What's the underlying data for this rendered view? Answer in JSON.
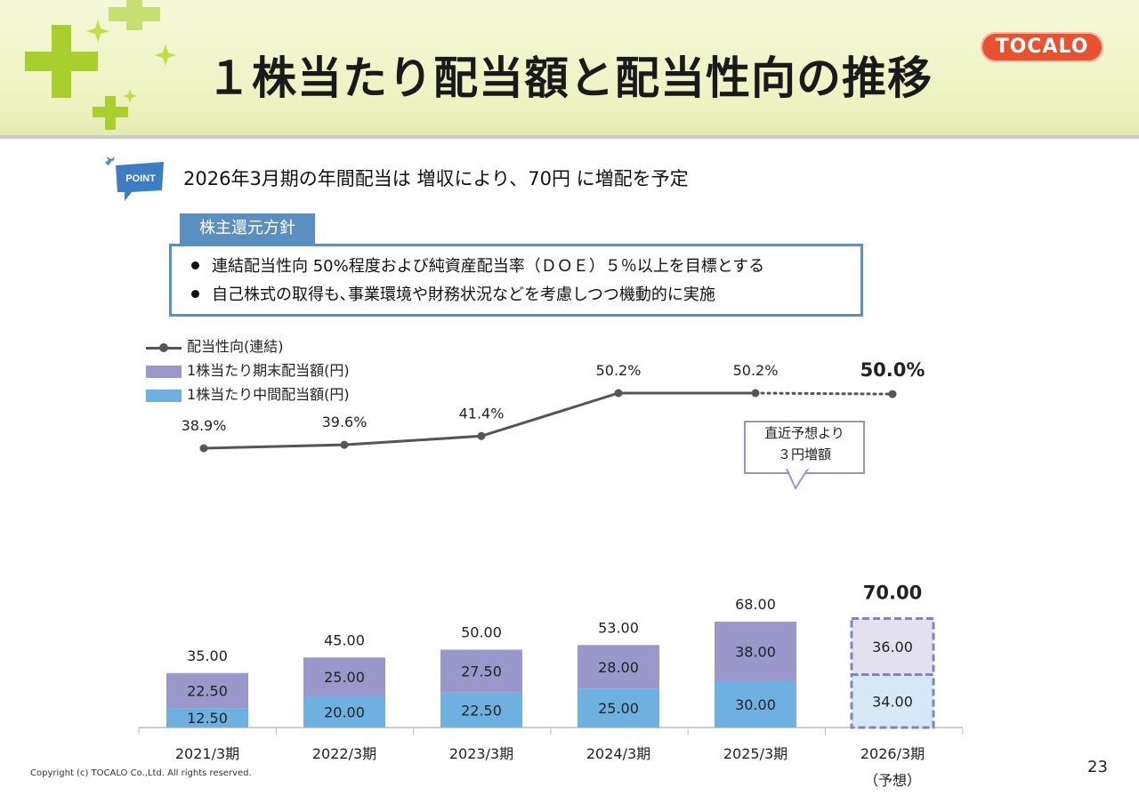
{
  "page": {
    "title": "１株当たり配当額と配当性向の推移",
    "logo": "TOCALO",
    "page_number": "23",
    "copyright": "Copyright (c) TOCALO Co.,Ltd. All rights reserved."
  },
  "point": {
    "badge": "POINT",
    "text": "2026年3月期の年間配当は 増収により、70円 に増配を予定"
  },
  "policy": {
    "title": "株主還元方針",
    "items": [
      "連結配当性向 50%程度および純資産配当率（ＤＯＥ）５％以上を目標とする",
      "自己株式の取得も､事業環境や財務状況などを考慮しつつ機動的に実施"
    ]
  },
  "callout": {
    "line1": "直近予想より",
    "line2": "３円増額"
  },
  "chart_data": {
    "type": "bar",
    "stacked": true,
    "categories": [
      "2021/3期",
      "2022/3期",
      "2023/3期",
      "2024/3期",
      "2025/3期",
      "2026/3期"
    ],
    "category_sublabels": [
      "",
      "",
      "",
      "",
      "",
      "（予想）"
    ],
    "series": [
      {
        "name": "1株当たり中間配当額(円)",
        "color": "#6eb1e0",
        "values": [
          12.5,
          20.0,
          22.5,
          25.0,
          30.0,
          34.0
        ],
        "labels": [
          "12.50",
          "20.00",
          "22.50",
          "25.00",
          "30.00",
          "34.00"
        ]
      },
      {
        "name": "1株当たり期末配当額(円)",
        "color": "#9a97cb",
        "values": [
          22.5,
          25.0,
          27.5,
          28.0,
          38.0,
          36.0
        ],
        "labels": [
          "22.50",
          "25.00",
          "27.50",
          "28.00",
          "38.00",
          "36.00"
        ]
      }
    ],
    "totals": [
      35.0,
      45.0,
      50.0,
      53.0,
      68.0,
      70.0
    ],
    "total_labels": [
      "35.00",
      "45.00",
      "50.00",
      "53.00",
      "68.00",
      "70.00"
    ],
    "forecast_index": 5,
    "forecast_colors": {
      "interim": "#d6e8f6",
      "final": "#e3e1f0",
      "border": "#7f86bf"
    },
    "payout_ratio": {
      "name": "配当性向(連結)",
      "color": "#555555",
      "values": [
        38.9,
        39.6,
        41.4,
        50.2,
        50.2,
        50.0
      ],
      "labels": [
        "38.9%",
        "39.6%",
        "41.4%",
        "50.2%",
        "50.2%",
        "50.0%"
      ]
    },
    "legend_position": "top-left"
  }
}
